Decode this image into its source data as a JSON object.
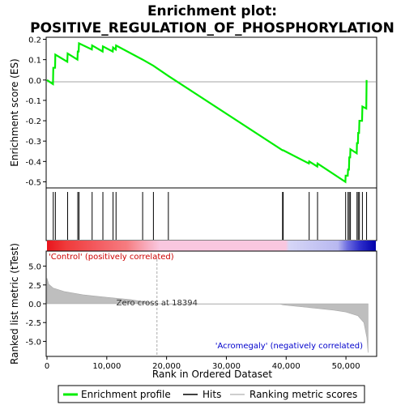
{
  "chart_data": {
    "type": "line",
    "title_line1": "Enrichment plot:",
    "title_line2": "POSITIVE_REGULATION_OF_PHOSPHORYLATION",
    "xlabel": "Rank in Ordered Dataset",
    "ylabel_top": "Enrichment score (ES)",
    "ylabel_bottom": "Ranked list metric (tTest)",
    "xlim": [
      0,
      55000
    ],
    "es_ylim": [
      -0.53,
      0.21
    ],
    "es_yticks": [
      "0.2",
      "0.1",
      "0.0",
      "-0.1",
      "-0.2",
      "-0.3",
      "-0.4",
      "-0.5"
    ],
    "metric_ylim": [
      -7,
      7
    ],
    "metric_yticks": [
      "5.0",
      "2.5",
      "0.0",
      "-2.5",
      "-5.0"
    ],
    "xticks": [
      "0",
      "10,000",
      "20,000",
      "30,000",
      "40,000",
      "50,000"
    ],
    "label_positive": "'Control' (positively correlated)",
    "label_negative": "'Acromegaly' (negatively correlated)",
    "zero_cross_label": "Zero cross at 18394",
    "zero_cross": 18394,
    "legend": [
      "Enrichment profile",
      "Hits",
      "Ranking metric scores"
    ],
    "colors": {
      "es_line": "#00ee00",
      "hits": "#000000",
      "metric": "#bebebe",
      "pos_text": "#cc0000",
      "neg_text": "#0000cc"
    },
    "es_profile": [
      [
        0,
        0.0
      ],
      [
        1000,
        -0.02
      ],
      [
        1050,
        0.06
      ],
      [
        1350,
        0.06
      ],
      [
        1400,
        0.125
      ],
      [
        3400,
        0.09
      ],
      [
        3450,
        0.13
      ],
      [
        5100,
        0.1
      ],
      [
        5150,
        0.14
      ],
      [
        5300,
        0.14
      ],
      [
        5350,
        0.18
      ],
      [
        7500,
        0.15
      ],
      [
        7550,
        0.17
      ],
      [
        9300,
        0.14
      ],
      [
        9350,
        0.165
      ],
      [
        11000,
        0.14
      ],
      [
        11050,
        0.16
      ],
      [
        11500,
        0.15
      ],
      [
        11550,
        0.17
      ],
      [
        16000,
        0.1
      ],
      [
        17800,
        0.07
      ],
      [
        20300,
        0.02
      ],
      [
        39400,
        -0.345
      ],
      [
        39500,
        -0.345
      ],
      [
        43800,
        -0.41
      ],
      [
        43850,
        -0.4
      ],
      [
        45200,
        -0.425
      ],
      [
        45250,
        -0.41
      ],
      [
        49900,
        -0.5
      ],
      [
        49950,
        -0.47
      ],
      [
        50300,
        -0.47
      ],
      [
        50350,
        -0.44
      ],
      [
        50500,
        -0.44
      ],
      [
        50550,
        -0.38
      ],
      [
        50700,
        -0.38
      ],
      [
        50750,
        -0.34
      ],
      [
        51800,
        -0.36
      ],
      [
        51850,
        -0.31
      ],
      [
        52000,
        -0.31
      ],
      [
        52050,
        -0.26
      ],
      [
        52200,
        -0.26
      ],
      [
        52250,
        -0.2
      ],
      [
        52700,
        -0.2
      ],
      [
        52750,
        -0.13
      ],
      [
        53400,
        -0.14
      ],
      [
        53450,
        0.0
      ]
    ],
    "hits": [
      1050,
      1400,
      3450,
      5150,
      5350,
      7550,
      9350,
      11050,
      11550,
      16000,
      17800,
      20300,
      39400,
      39500,
      43850,
      45250,
      49950,
      50350,
      50550,
      50750,
      51850,
      52050,
      52250,
      52750,
      53450
    ],
    "metric_curve": [
      [
        0,
        3.4
      ],
      [
        300,
        2.6
      ],
      [
        1000,
        2.1
      ],
      [
        3000,
        1.6
      ],
      [
        6000,
        1.2
      ],
      [
        10000,
        0.85
      ],
      [
        14000,
        0.55
      ],
      [
        18394,
        0.0
      ],
      [
        20000,
        -0.05
      ],
      [
        39000,
        -0.05
      ],
      [
        39500,
        -0.15
      ],
      [
        45000,
        -0.6
      ],
      [
        48000,
        -0.85
      ],
      [
        50000,
        -1.1
      ],
      [
        52000,
        -1.6
      ],
      [
        53000,
        -2.5
      ],
      [
        53500,
        -4.5
      ],
      [
        53700,
        -6.5
      ]
    ],
    "heatmap_gradient": [
      [
        0,
        "#e8141c"
      ],
      [
        3000,
        "#ef3a3a"
      ],
      [
        8000,
        "#f35a5f"
      ],
      [
        13000,
        "#f67c80"
      ],
      [
        16000,
        "#f8a8b8"
      ],
      [
        18394,
        "#f9c7df"
      ],
      [
        39000,
        "#f9c7df"
      ],
      [
        39500,
        "#d6d6f6"
      ],
      [
        47500,
        "#b8b8f0"
      ],
      [
        49000,
        "#6f6fe0"
      ],
      [
        51000,
        "#3030cc"
      ],
      [
        53700,
        "#0000aa"
      ]
    ]
  }
}
